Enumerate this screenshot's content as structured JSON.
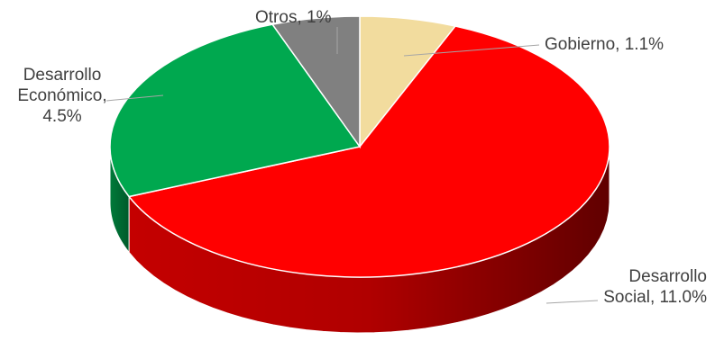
{
  "chart_data": {
    "type": "pie",
    "title": "",
    "slices": [
      {
        "label_lines": [
          "Gobierno, 1.1%"
        ],
        "value": 1.1,
        "color": "#f2dc9e"
      },
      {
        "label_lines": [
          "Desarrollo",
          "Social, 11.0%"
        ],
        "value": 11.0,
        "color": "#ff0000"
      },
      {
        "label_lines": [
          "Desarrollo",
          "Económico,",
          "4.5%"
        ],
        "value": 4.5,
        "color": "#00a84f"
      },
      {
        "label_lines": [
          "Otros, 1%"
        ],
        "value": 1,
        "color": "#808080"
      }
    ],
    "legend": "none",
    "style": "3d"
  }
}
